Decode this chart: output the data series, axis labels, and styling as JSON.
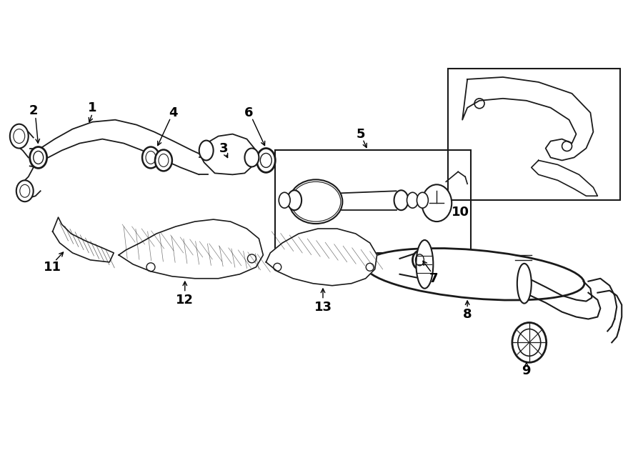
{
  "bg_color": "#ffffff",
  "line_color": "#1a1a1a",
  "label_color": "#000000",
  "label_fontsize": 13,
  "fig_width": 9.0,
  "fig_height": 6.62,
  "dpi": 100
}
